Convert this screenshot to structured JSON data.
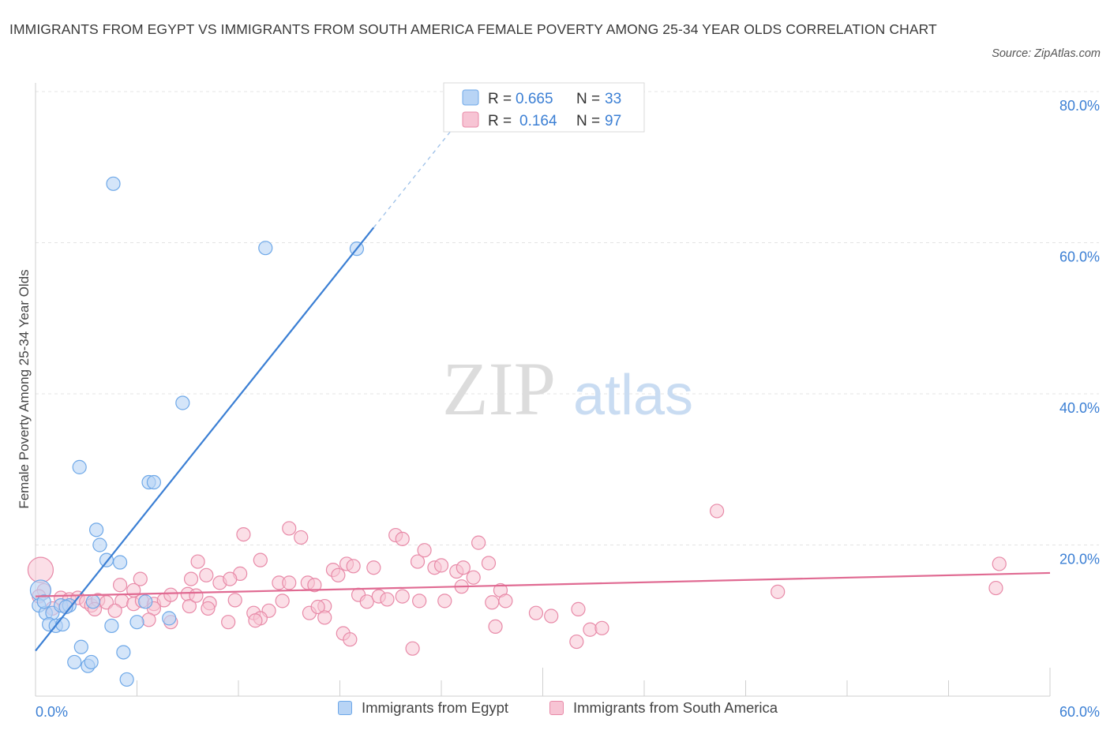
{
  "chart_data": {
    "type": "scatter",
    "title": "IMMIGRANTS FROM EGYPT VS IMMIGRANTS FROM SOUTH AMERICA FEMALE POVERTY AMONG 25-34 YEAR OLDS CORRELATION CHART",
    "source": "Source: ZipAtlas.com",
    "ylabel": "Female Poverty Among 25-34 Year Olds",
    "xlim": [
      0,
      60
    ],
    "ylim": [
      0,
      80
    ],
    "x_tick_labels": [
      "0.0%",
      "60.0%"
    ],
    "y_tick_labels": [
      "20.0%",
      "40.0%",
      "60.0%",
      "80.0%"
    ],
    "watermark": {
      "zip": "ZIP",
      "atlas": "atlas"
    },
    "legend_stats": [
      {
        "r_label": "R =",
        "r_value": "0.665",
        "n_label": "N =",
        "n_value": "33"
      },
      {
        "r_label": "R =",
        "r_value": "0.164",
        "n_label": "N =",
        "n_value": "97"
      }
    ],
    "series": [
      {
        "name": "Immigrants from Egypt",
        "color": "#6ea8e8",
        "fill": "#b8d4f5",
        "trend_color": "#3b7fd4",
        "trend": {
          "x0": 0,
          "y0": 6,
          "x1": 20,
          "y1": 62,
          "dash_x1": 25,
          "dash_y1": 76
        },
        "points": [
          [
            4.6,
            67.8
          ],
          [
            13.6,
            59.3
          ],
          [
            19.0,
            59.2
          ],
          [
            8.7,
            38.8
          ],
          [
            2.6,
            30.3
          ],
          [
            6.7,
            28.3
          ],
          [
            7.0,
            28.3
          ],
          [
            3.6,
            22.0
          ],
          [
            3.8,
            20.0
          ],
          [
            4.2,
            18.0
          ],
          [
            5.0,
            17.7
          ],
          [
            0.3,
            14.0
          ],
          [
            0.2,
            12.0
          ],
          [
            0.6,
            11.0
          ],
          [
            1.0,
            11.0
          ],
          [
            1.5,
            12.0
          ],
          [
            2.0,
            12.0
          ],
          [
            3.4,
            12.5
          ],
          [
            6.5,
            12.5
          ],
          [
            0.8,
            9.5
          ],
          [
            1.2,
            9.3
          ],
          [
            1.6,
            9.5
          ],
          [
            4.5,
            9.3
          ],
          [
            6.0,
            9.8
          ],
          [
            7.9,
            10.3
          ],
          [
            2.3,
            4.5
          ],
          [
            2.7,
            6.5
          ],
          [
            3.1,
            4.0
          ],
          [
            3.3,
            4.5
          ],
          [
            5.2,
            5.8
          ],
          [
            5.4,
            2.2
          ],
          [
            0.5,
            12.5
          ],
          [
            1.8,
            11.8
          ]
        ]
      },
      {
        "name": "Immigrants from South America",
        "color": "#e88aa8",
        "fill": "#f7c4d4",
        "trend_color": "#e06a92",
        "trend": {
          "x0": 0,
          "y0": 13.2,
          "x1": 60,
          "y1": 16.3
        },
        "points": [
          [
            40.3,
            24.5
          ],
          [
            57.0,
            17.5
          ],
          [
            56.8,
            14.3
          ],
          [
            43.9,
            13.8
          ],
          [
            15.0,
            22.2
          ],
          [
            15.7,
            21.0
          ],
          [
            12.3,
            21.4
          ],
          [
            21.3,
            21.3
          ],
          [
            21.7,
            20.8
          ],
          [
            26.2,
            20.3
          ],
          [
            22.6,
            17.8
          ],
          [
            23.0,
            19.3
          ],
          [
            9.6,
            17.8
          ],
          [
            13.3,
            18.0
          ],
          [
            18.4,
            17.5
          ],
          [
            18.8,
            17.2
          ],
          [
            17.6,
            16.7
          ],
          [
            20.0,
            17.0
          ],
          [
            23.6,
            17.0
          ],
          [
            24.0,
            17.3
          ],
          [
            24.9,
            16.5
          ],
          [
            25.3,
            17.0
          ],
          [
            26.8,
            17.6
          ],
          [
            10.1,
            16.0
          ],
          [
            12.1,
            16.2
          ],
          [
            17.9,
            16.0
          ],
          [
            25.9,
            15.7
          ],
          [
            6.2,
            15.5
          ],
          [
            9.2,
            15.5
          ],
          [
            14.4,
            15.0
          ],
          [
            15.0,
            15.0
          ],
          [
            16.1,
            15.0
          ],
          [
            16.5,
            14.7
          ],
          [
            10.9,
            15.0
          ],
          [
            5.0,
            14.7
          ],
          [
            5.8,
            14.0
          ],
          [
            9.0,
            13.5
          ],
          [
            25.2,
            14.5
          ],
          [
            27.5,
            14.0
          ],
          [
            0.3,
            16.7
          ],
          [
            0.5,
            14.0
          ],
          [
            0.2,
            13.2
          ],
          [
            1.5,
            13.0
          ],
          [
            2.0,
            12.8
          ],
          [
            2.5,
            13.0
          ],
          [
            3.0,
            12.5
          ],
          [
            3.3,
            12.0
          ],
          [
            3.7,
            12.7
          ],
          [
            4.2,
            12.4
          ],
          [
            5.1,
            12.6
          ],
          [
            5.8,
            12.2
          ],
          [
            6.3,
            12.6
          ],
          [
            7.0,
            12.2
          ],
          [
            7.6,
            12.7
          ],
          [
            8.0,
            13.4
          ],
          [
            10.3,
            12.3
          ],
          [
            11.8,
            12.7
          ],
          [
            14.6,
            12.6
          ],
          [
            17.1,
            11.9
          ],
          [
            19.1,
            13.4
          ],
          [
            19.6,
            12.5
          ],
          [
            20.3,
            13.2
          ],
          [
            20.8,
            12.8
          ],
          [
            21.7,
            13.2
          ],
          [
            22.7,
            12.6
          ],
          [
            24.2,
            12.6
          ],
          [
            27.0,
            12.4
          ],
          [
            27.8,
            12.6
          ],
          [
            1.0,
            11.6
          ],
          [
            1.8,
            11.8
          ],
          [
            3.5,
            11.5
          ],
          [
            4.7,
            11.3
          ],
          [
            7.0,
            11.6
          ],
          [
            9.1,
            11.9
          ],
          [
            10.2,
            11.6
          ],
          [
            12.9,
            11.0
          ],
          [
            13.8,
            11.3
          ],
          [
            16.2,
            11.0
          ],
          [
            16.7,
            11.8
          ],
          [
            17.1,
            10.4
          ],
          [
            29.6,
            11.0
          ],
          [
            30.5,
            10.6
          ],
          [
            32.1,
            11.5
          ],
          [
            6.7,
            10.1
          ],
          [
            8.0,
            9.8
          ],
          [
            11.4,
            9.8
          ],
          [
            13.3,
            10.3
          ],
          [
            18.2,
            8.3
          ],
          [
            18.6,
            7.5
          ],
          [
            22.3,
            6.3
          ],
          [
            27.2,
            9.2
          ],
          [
            32.0,
            7.2
          ],
          [
            32.8,
            8.8
          ],
          [
            33.5,
            9.0
          ],
          [
            13.0,
            10.0
          ],
          [
            9.5,
            13.3
          ],
          [
            11.5,
            15.5
          ]
        ]
      }
    ]
  }
}
